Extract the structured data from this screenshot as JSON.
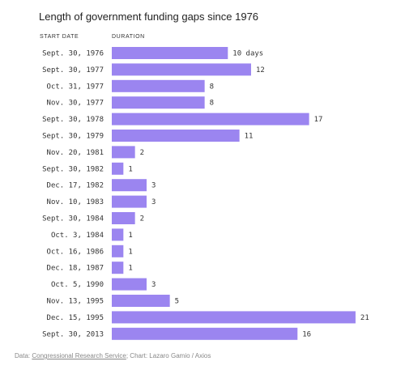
{
  "title": "Length of government funding gaps since 1976",
  "columns": {
    "date": "START DATE",
    "duration": "DURATION"
  },
  "chart_data": {
    "type": "bar",
    "orientation": "horizontal",
    "categories": [
      "Sept. 30, 1976",
      "Sept. 30, 1977",
      "Oct. 31, 1977",
      "Nov. 30, 1977",
      "Sept. 30, 1978",
      "Sept. 30, 1979",
      "Nov. 20, 1981",
      "Sept. 30, 1982",
      "Dec. 17, 1982",
      "Nov. 10, 1983",
      "Sept. 30, 1984",
      "Oct. 3, 1984",
      "Oct. 16, 1986",
      "Dec. 18, 1987",
      "Oct. 5, 1990",
      "Nov. 13, 1995",
      "Dec. 15, 1995",
      "Sept. 30, 2013"
    ],
    "values": [
      10,
      12,
      8,
      8,
      17,
      11,
      2,
      1,
      3,
      3,
      2,
      1,
      1,
      1,
      3,
      5,
      21,
      16
    ],
    "labels": [
      "10 days",
      "12",
      "8",
      "8",
      "17",
      "11",
      "2",
      "1",
      "3",
      "3",
      "2",
      "1",
      "1",
      "1",
      "3",
      "5",
      "21",
      "16"
    ],
    "bar_color": "#9b85f0"
  },
  "source": {
    "prefix": "Data: ",
    "link": "Congressional Research Service",
    "suffix": "; Chart: Lazaro Gamio / Axios"
  }
}
